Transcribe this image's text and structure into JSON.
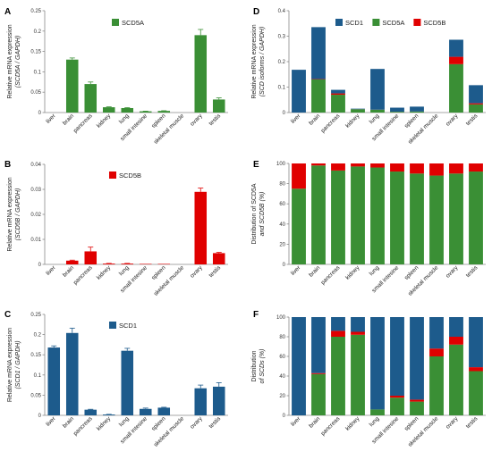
{
  "colors": {
    "green": "#3a8f35",
    "red": "#e00000",
    "blue": "#1d5b8c"
  },
  "chart_data": [
    {
      "panel": "A",
      "type": "bar",
      "categories": [
        "liver",
        "brain",
        "pancreas",
        "kidney",
        "lung",
        "small intesine",
        "spleen",
        "skeletal muscle",
        "ovary",
        "testis"
      ],
      "series": [
        {
          "name": "SCD5A",
          "color": "#3a8f35",
          "values": [
            0.0,
            0.13,
            0.07,
            0.013,
            0.011,
            0.003,
            0.004,
            0.0,
            0.19,
            0.032
          ],
          "errors": [
            0.0,
            0.004,
            0.005,
            0.001,
            0.001,
            0.0005,
            0.0005,
            0.0,
            0.014,
            0.004
          ]
        }
      ],
      "ylabel": "Relative mRNA expression",
      "ylabel2": "(SCD5A / GAPDH)",
      "ylim": [
        0,
        0.25
      ],
      "yticks": [
        0,
        0.05,
        0.1,
        0.15,
        0.2,
        0.25
      ],
      "ytick_labels": [
        "0",
        "0.05",
        "0.1",
        "0.15",
        "0.2",
        "0.25"
      ]
    },
    {
      "panel": "B",
      "type": "bar",
      "categories": [
        "liver",
        "brain",
        "pancreas",
        "kidney",
        "lung",
        "small intesine",
        "spleen",
        "skeletal muscle",
        "ovary",
        "testis"
      ],
      "series": [
        {
          "name": "SCD5B",
          "color": "#e00000",
          "values": [
            0.0,
            0.0015,
            0.0052,
            0.0003,
            0.0003,
            0.0002,
            0.0002,
            0.0,
            0.029,
            0.0045
          ],
          "errors": [
            0.0,
            0.0002,
            0.0017,
            0.0001,
            0.0001,
            0.0,
            0.0,
            0.0,
            0.0015,
            0.0003
          ]
        }
      ],
      "ylabel": "Relative mRNA expression",
      "ylabel2": "(SCD5B / GAPDH)",
      "ylim": [
        0,
        0.04
      ],
      "yticks": [
        0,
        0.01,
        0.02,
        0.03,
        0.04
      ],
      "ytick_labels": [
        "0",
        "0.01",
        "0.02",
        "0.03",
        "0.04"
      ]
    },
    {
      "panel": "C",
      "type": "bar",
      "categories": [
        "liver",
        "brain",
        "pancreas",
        "kidney",
        "lung",
        "small intesine",
        "spleen",
        "skeletal muscle",
        "ovary",
        "testis"
      ],
      "series": [
        {
          "name": "SCD1",
          "color": "#1d5b8c",
          "values": [
            0.168,
            0.204,
            0.014,
            0.002,
            0.16,
            0.016,
            0.019,
            0.0,
            0.067,
            0.071
          ],
          "errors": [
            0.004,
            0.012,
            0.001,
            0.0005,
            0.006,
            0.002,
            0.001,
            0.0,
            0.008,
            0.01
          ]
        }
      ],
      "ylabel": "Relative mRNA expression",
      "ylabel2": "(SCD1 / GAPDH)",
      "ylim": [
        0,
        0.25
      ],
      "yticks": [
        0,
        0.05,
        0.1,
        0.15,
        0.2,
        0.25
      ],
      "ytick_labels": [
        "0",
        "0.05",
        "0.1",
        "0.15",
        "0.2",
        "0.25"
      ]
    },
    {
      "panel": "D",
      "type": "bar",
      "stacked": true,
      "categories": [
        "liver",
        "brain",
        "pancreas",
        "kidney",
        "lung",
        "small intesine",
        "spleen",
        "skeletal muscle",
        "ovary",
        "testis"
      ],
      "series": [
        {
          "name": "SCD5A",
          "color": "#3a8f35",
          "values": [
            0.0,
            0.13,
            0.07,
            0.013,
            0.011,
            0.003,
            0.004,
            0.0,
            0.19,
            0.032
          ]
        },
        {
          "name": "SCD5B",
          "color": "#e00000",
          "values": [
            0.0,
            0.0015,
            0.0052,
            0.0003,
            0.0003,
            0.0002,
            0.0002,
            0.0,
            0.029,
            0.0045
          ]
        },
        {
          "name": "SCD1",
          "color": "#1d5b8c",
          "values": [
            0.168,
            0.204,
            0.014,
            0.002,
            0.16,
            0.016,
            0.019,
            0.0,
            0.067,
            0.071
          ]
        }
      ],
      "legend_order": [
        "SCD1",
        "SCD5A",
        "SCD5B"
      ],
      "ylabel": "Relative mRNA expression",
      "ylabel2": "(SCD isoforms / GAPDH)",
      "ylim": [
        0,
        0.4
      ],
      "yticks": [
        0,
        0.1,
        0.2,
        0.3,
        0.4
      ],
      "ytick_labels": [
        "0",
        "0.1",
        "0.2",
        "0.3",
        "0.4"
      ]
    },
    {
      "panel": "E",
      "type": "bar",
      "stacked": true,
      "categories": [
        "liver",
        "brain",
        "pancreas",
        "kidney",
        "lung",
        "small intesine",
        "spleen",
        "skeletal muscle",
        "ovary",
        "testis"
      ],
      "series": [
        {
          "name": "SCD5A",
          "color": "#3a8f35",
          "values": [
            75,
            98,
            93,
            97,
            96,
            92,
            90,
            88,
            90,
            92
          ]
        },
        {
          "name": "SCD5B",
          "color": "#e00000",
          "values": [
            25,
            2,
            7,
            3,
            4,
            8,
            10,
            12,
            10,
            8
          ]
        }
      ],
      "ylabel": "Distribution of SCD5A",
      "ylabel2": "and SCD5B (%)",
      "ylim": [
        0,
        100
      ],
      "yticks": [
        0,
        20,
        40,
        60,
        80,
        100
      ],
      "ytick_labels": [
        "0",
        "20",
        "40",
        "60",
        "80",
        "100"
      ]
    },
    {
      "panel": "F",
      "type": "bar",
      "stacked": true,
      "categories": [
        "liver",
        "brain",
        "pancreas",
        "kidney",
        "lung",
        "small intesine",
        "spleen",
        "skeletal muscle",
        "ovary",
        "testis"
      ],
      "series": [
        {
          "name": "SCD5A",
          "color": "#3a8f35",
          "values": [
            0,
            42,
            80,
            82,
            6,
            18,
            14,
            60,
            72,
            45
          ]
        },
        {
          "name": "SCD5B",
          "color": "#e00000",
          "values": [
            0,
            1,
            6,
            3,
            0,
            2,
            2,
            8,
            8,
            4
          ]
        },
        {
          "name": "SCD1",
          "color": "#1d5b8c",
          "values": [
            100,
            57,
            14,
            15,
            94,
            80,
            84,
            32,
            20,
            51
          ]
        }
      ],
      "ylabel": "Distribution",
      "ylabel2": "of SCDs (%)",
      "ylim": [
        0,
        100
      ],
      "yticks": [
        0,
        20,
        40,
        60,
        80,
        100
      ],
      "ytick_labels": [
        "0",
        "20",
        "40",
        "60",
        "80",
        "100"
      ]
    }
  ]
}
